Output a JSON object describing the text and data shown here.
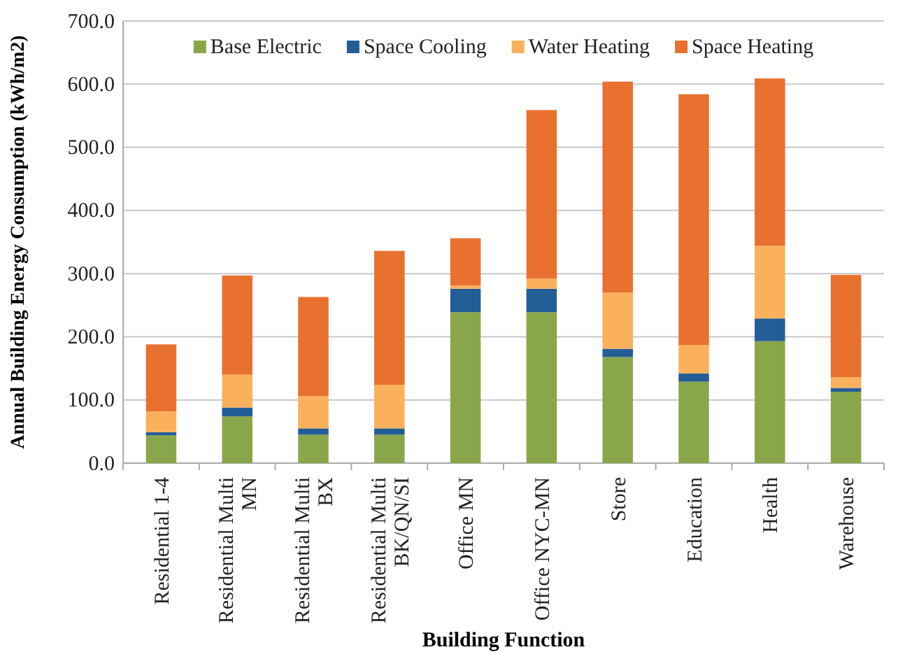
{
  "chart_data": {
    "type": "bar",
    "stacked": true,
    "xlabel": "Building Function",
    "ylabel": "Annual Building Energy Consumption (kWh/m2)",
    "categories": [
      "Residential 1-4",
      "Residential Multi MN",
      "Residential Multi BX",
      "Residential Multi BK/QN/SI",
      "Office MN",
      "Office NYC-MN",
      "Store",
      "Education",
      "Health",
      "Warehouse"
    ],
    "series": [
      {
        "name": "Base Electric",
        "color": "#8aa64a",
        "values": [
          44,
          74,
          45,
          45,
          239,
          239,
          168,
          129,
          193,
          113
        ]
      },
      {
        "name": "Space Cooling",
        "color": "#235d96",
        "values": [
          5,
          14,
          10,
          10,
          37,
          37,
          13,
          13,
          36,
          6
        ]
      },
      {
        "name": "Water Heating",
        "color": "#fbb05c",
        "values": [
          33,
          52,
          51,
          69,
          5,
          16,
          89,
          45,
          115,
          17
        ]
      },
      {
        "name": "Space Heating",
        "color": "#e8712f",
        "values": [
          106,
          157,
          157,
          212,
          75,
          267,
          334,
          397,
          265,
          162
        ]
      }
    ],
    "ylim": [
      0,
      700
    ],
    "yticks": [
      {
        "value": 0,
        "label": "0.0"
      },
      {
        "value": 100,
        "label": "100.0"
      },
      {
        "value": 200,
        "label": "200.0"
      },
      {
        "value": 300,
        "label": "300.0"
      },
      {
        "value": 400,
        "label": "400.0"
      },
      {
        "value": 500,
        "label": "500.0"
      },
      {
        "value": 600,
        "label": "600.0"
      },
      {
        "value": 700,
        "label": "700.0"
      }
    ],
    "grid": "y",
    "legend": "top"
  }
}
